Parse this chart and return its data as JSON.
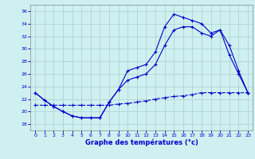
{
  "xlabel": "Graphe des températures (°c)",
  "bg_color": "#cff0f0",
  "grid_color": "#b0d8d8",
  "line_color": "#0000cc",
  "ylim": [
    17,
    37
  ],
  "xlim": [
    -0.5,
    23.5
  ],
  "yticks": [
    18,
    20,
    22,
    24,
    26,
    28,
    30,
    32,
    34,
    36
  ],
  "xticks": [
    0,
    1,
    2,
    3,
    4,
    5,
    6,
    7,
    8,
    9,
    10,
    11,
    12,
    13,
    14,
    15,
    16,
    17,
    18,
    19,
    20,
    21,
    22,
    23
  ],
  "line1_x": [
    0,
    1,
    2,
    3,
    4,
    5,
    6,
    7,
    8,
    9,
    10,
    11,
    12,
    13,
    14,
    15,
    16,
    17,
    18,
    19,
    20,
    21,
    22,
    23
  ],
  "line1_y": [
    23.0,
    21.8,
    20.8,
    20.0,
    19.3,
    19.0,
    19.0,
    19.0,
    21.5,
    23.5,
    26.5,
    27.0,
    27.5,
    29.5,
    33.5,
    35.5,
    35.0,
    34.5,
    34.0,
    32.5,
    33.0,
    30.5,
    26.5,
    23.0
  ],
  "line2_x": [
    0,
    1,
    2,
    3,
    4,
    5,
    6,
    7,
    8,
    9,
    10,
    11,
    12,
    13,
    14,
    15,
    16,
    17,
    18,
    19,
    20,
    21,
    22,
    23
  ],
  "line2_y": [
    23.0,
    21.8,
    20.8,
    20.0,
    19.3,
    19.0,
    19.0,
    19.0,
    21.5,
    23.5,
    25.0,
    25.5,
    26.0,
    27.5,
    30.5,
    33.0,
    33.5,
    33.5,
    32.5,
    32.0,
    33.0,
    29.0,
    26.0,
    23.0
  ],
  "line3_x": [
    0,
    1,
    2,
    3,
    4,
    5,
    6,
    7,
    8,
    9,
    10,
    11,
    12,
    13,
    14,
    15,
    16,
    17,
    18,
    19,
    20,
    21,
    22,
    23
  ],
  "line3_y": [
    21.0,
    21.0,
    21.0,
    21.0,
    21.0,
    21.0,
    21.0,
    21.0,
    21.0,
    21.2,
    21.3,
    21.5,
    21.7,
    22.0,
    22.2,
    22.4,
    22.5,
    22.7,
    23.0,
    23.0,
    23.0,
    23.0,
    23.0,
    23.0
  ]
}
